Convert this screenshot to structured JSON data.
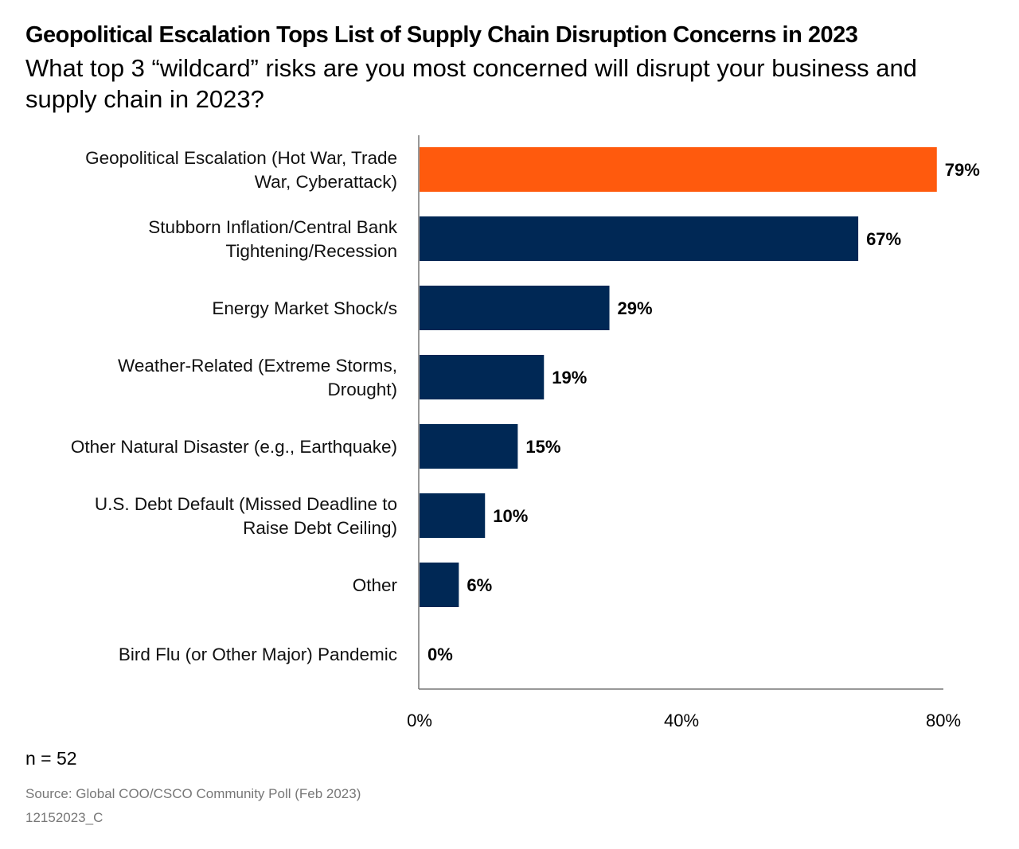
{
  "chart_data": {
    "type": "bar",
    "orientation": "horizontal",
    "title": "Geopolitical Escalation Tops List of Supply Chain Disruption Concerns in 2023",
    "subtitle": "What top 3 “wildcard” risks are you most concerned will disrupt your business and supply chain in 2023?",
    "categories": [
      "Geopolitical Escalation (Hot War, Trade\nWar, Cyberattack)",
      "Stubborn Inflation/Central Bank\nTightening/Recession",
      "Energy Market Shock/s",
      "Weather-Related (Extreme Storms,\nDrought)",
      "Other Natural Disaster (e.g., Earthquake)",
      "U.S. Debt Default (Missed Deadline to\nRaise Debt Ceiling)",
      "Other",
      "Bird Flu (or Other Major) Pandemic"
    ],
    "values": [
      79,
      67,
      29,
      19,
      15,
      10,
      6,
      0
    ],
    "data_labels": [
      "79%",
      "67%",
      "29%",
      "19%",
      "15%",
      "10%",
      "6%",
      "0%"
    ],
    "xlim": [
      0,
      80
    ],
    "x_ticks": [
      0,
      40,
      80
    ],
    "x_tick_labels": [
      "0%",
      "40%",
      "80%"
    ],
    "grid": false,
    "colors": {
      "highlight": "#FF5A0D",
      "default": "#002855"
    }
  },
  "footer": {
    "sample": "n = 52",
    "source": "Source: Global COO/CSCO Community Poll (Feb 2023)",
    "code": "12152023_C"
  }
}
